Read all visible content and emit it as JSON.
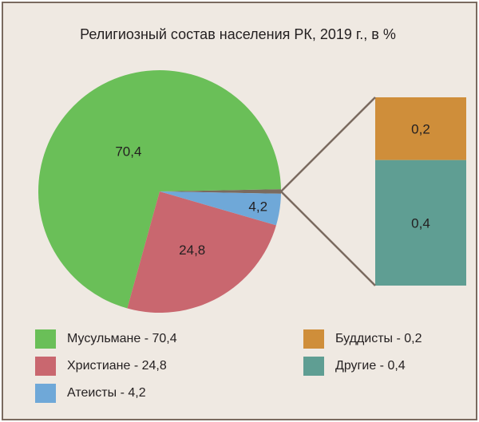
{
  "chart_data": {
    "type": "pie",
    "title": "Религиозный состав населения РК, 2019 г., в %",
    "slices": [
      {
        "label": "Мусульмане",
        "value": 70.4,
        "value_label": "70,4",
        "legend": "Мусульмане - 70,4",
        "color": "#6abf58"
      },
      {
        "label": "Христиане",
        "value": 24.8,
        "value_label": "24,8",
        "legend": "Христиане - 24,8",
        "color": "#c9676f"
      },
      {
        "label": "Атеисты",
        "value": 4.2,
        "value_label": "4,2",
        "legend": "Атеисты - 4,2",
        "color": "#6fa8d8"
      },
      {
        "label": "Буддисты",
        "value": 0.2,
        "value_label": "0,2",
        "legend": "Буддисты - 0,2",
        "color": "#cf8e3a"
      },
      {
        "label": "Другие",
        "value": 0.4,
        "value_label": "0,4",
        "legend": "Другие - 0,4",
        "color": "#5f9e93"
      }
    ],
    "breakout": {
      "categories": [
        "Буддисты",
        "Другие"
      ],
      "connector_color": "#7a6a5f"
    },
    "legend_position": "bottom"
  }
}
